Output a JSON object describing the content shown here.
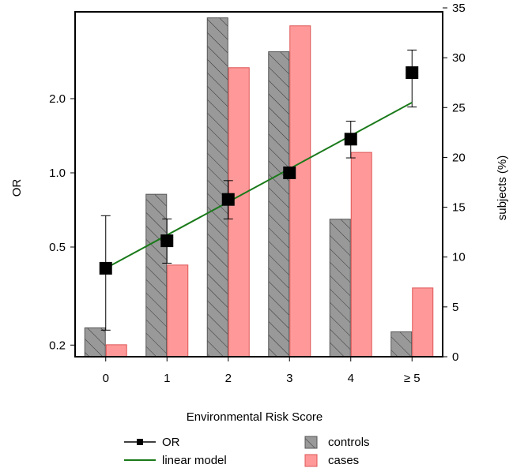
{
  "chart_data": {
    "type": "bar",
    "xlabel": "Environmental Risk Score",
    "ylabel_left": "OR",
    "ylabel_right": "subjects (%)",
    "categories": [
      "0",
      "1",
      "2",
      "3",
      "4",
      "≥ 5"
    ],
    "y_left_scale": "log",
    "y_left_ticks": [
      0.2,
      0.5,
      1.0,
      2.0
    ],
    "y_left_tick_labels": [
      "0.2",
      "0.5",
      "1.0",
      "2.0"
    ],
    "y_right_ticks": [
      0,
      5,
      10,
      15,
      20,
      25,
      30,
      35
    ],
    "y_right_range": [
      0,
      35
    ],
    "bar_series": [
      {
        "name": "controls",
        "values": [
          2.9,
          16.3,
          34.0,
          30.6,
          13.8,
          2.5
        ],
        "color": "#999999",
        "hatch": true
      },
      {
        "name": "cases",
        "values": [
          1.2,
          9.2,
          29.0,
          33.2,
          20.5,
          6.9
        ],
        "color": "#ff9999",
        "hatch": false
      }
    ],
    "or_series": {
      "name": "OR",
      "values": [
        0.41,
        0.53,
        0.78,
        1.0,
        1.37,
        2.55
      ],
      "ci_low": [
        0.23,
        0.43,
        0.65,
        1.0,
        1.15,
        1.85
      ],
      "ci_high": [
        0.67,
        0.65,
        0.93,
        1.0,
        1.62,
        3.15
      ]
    },
    "linear_model": {
      "name": "linear model",
      "start": 0.41,
      "end": 1.93,
      "color": "#1a7a1a"
    },
    "legend": [
      {
        "label": "OR",
        "kind": "marker-line"
      },
      {
        "label": "linear model",
        "kind": "line"
      },
      {
        "label": "controls",
        "kind": "hatched-box"
      },
      {
        "label": "cases",
        "kind": "box"
      }
    ],
    "legend_position": "bottom"
  }
}
